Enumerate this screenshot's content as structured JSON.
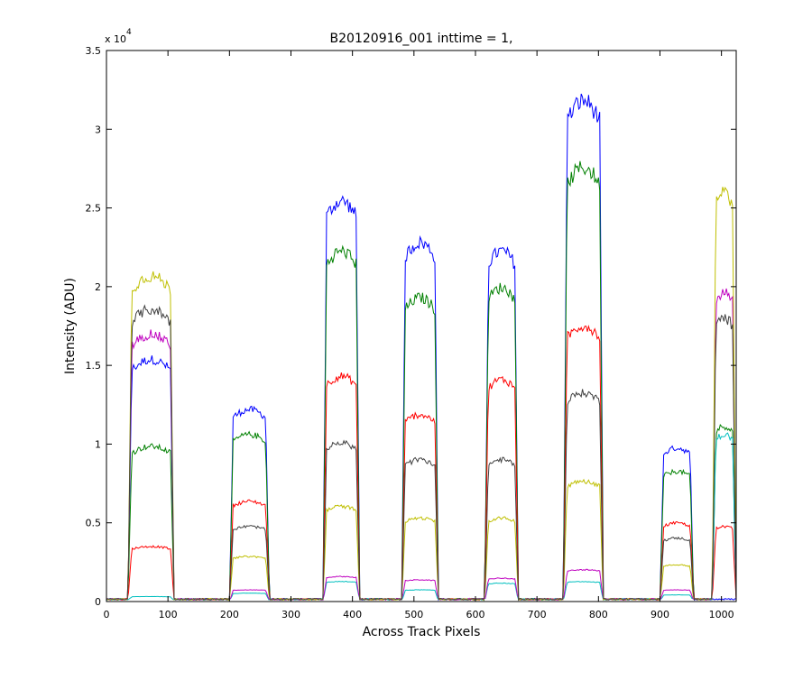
{
  "chart_data": {
    "type": "line",
    "title": "B20120916_001 inttime = 1,",
    "xlabel": "Across Track Pixels",
    "ylabel": "Intensity (ADU)",
    "y_multiplier_label": "x 10",
    "y_multiplier_exponent": "4",
    "xlim": [
      0,
      1024
    ],
    "ylim": [
      0,
      3.5
    ],
    "y_scale_factor": 10000,
    "x_ticks": [
      0,
      100,
      200,
      300,
      400,
      500,
      600,
      700,
      800,
      900,
      1000
    ],
    "x_tick_labels": [
      "0",
      "100",
      "200",
      "300",
      "400",
      "500",
      "600",
      "700",
      "800",
      "900",
      "1000"
    ],
    "y_ticks": [
      0,
      0.5,
      1,
      1.5,
      2,
      2.5,
      3,
      3.5
    ],
    "y_tick_labels": [
      "0",
      "0.5",
      "1",
      "1.5",
      "2",
      "2.5",
      "3",
      "3.5"
    ],
    "grid": false,
    "legend": "none",
    "blocks": [
      {
        "x0": 35,
        "x1": 110
      },
      {
        "x0": 200,
        "x1": 265
      },
      {
        "x0": 352,
        "x1": 412
      },
      {
        "x0": 480,
        "x1": 540
      },
      {
        "x0": 615,
        "x1": 670
      },
      {
        "x0": 743,
        "x1": 808
      },
      {
        "x0": 900,
        "x1": 955
      },
      {
        "x0": 985,
        "x1": 1024
      }
    ],
    "series": [
      {
        "color": "#0000ff",
        "levels": [
          1.45,
          1.15,
          2.4,
          2.15,
          2.1,
          3.0,
          0.92,
          0.0
        ]
      },
      {
        "color": "#008000",
        "levels": [
          0.93,
          1.0,
          2.1,
          1.82,
          1.88,
          2.6,
          0.78,
          1.05
        ]
      },
      {
        "color": "#ff0000",
        "levels": [
          0.33,
          0.6,
          1.35,
          1.12,
          1.33,
          1.65,
          0.47,
          0.45
        ]
      },
      {
        "color": "#00bfbf",
        "levels": [
          0.03,
          0.05,
          0.12,
          0.07,
          0.11,
          0.12,
          0.04,
          1.0
        ]
      },
      {
        "color": "#bf00bf",
        "levels": [
          1.6,
          0.07,
          0.15,
          0.13,
          0.14,
          0.19,
          0.07,
          1.85
        ]
      },
      {
        "color": "#bfbf00",
        "levels": [
          1.95,
          0.27,
          0.57,
          0.5,
          0.5,
          0.72,
          0.22,
          2.45
        ]
      },
      {
        "color": "#404040",
        "levels": [
          1.75,
          0.45,
          0.95,
          0.85,
          0.85,
          1.25,
          0.38,
          1.7
        ]
      }
    ]
  }
}
